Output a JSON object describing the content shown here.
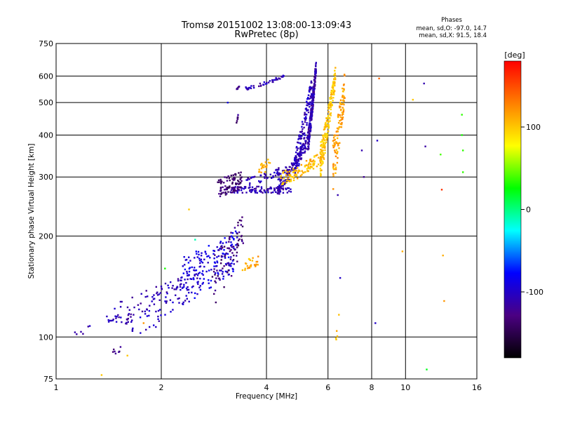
{
  "chart_data": {
    "type": "scatter",
    "title": "Tromsø 20151002 13:08:00-13:09:43",
    "subtitle": "RwPretec (8p)",
    "xlabel": "Frequency [MHz]",
    "ylabel": "Stationary phase Virtual Height [km]",
    "x_scale": "log",
    "y_scale": "log",
    "xlim": [
      1,
      16
    ],
    "ylim": [
      75,
      750
    ],
    "x_ticks": [
      "1",
      "2",
      "4",
      "6",
      "8",
      "10",
      "16"
    ],
    "y_ticks": [
      "75",
      "100",
      "200",
      "300",
      "400",
      "500",
      "600",
      "750"
    ],
    "grid": true,
    "stats_title": "Phases",
    "stats_line1": "mean, sd,O: -97.0, 14.7",
    "stats_line2": "mean, sd,X:  91.5, 18.4",
    "colorbar": {
      "label": "[deg]",
      "range": [
        -180,
        180
      ],
      "ticks": [
        "100",
        "0",
        "-100"
      ],
      "colors": [
        "#000000",
        "#4b0082",
        "#0000ff",
        "#00ffff",
        "#00ff00",
        "#ffff00",
        "#ff8000",
        "#ff0000"
      ]
    },
    "series": [
      {
        "segments": [
          {
            "f0": 1.35,
            "f1": 1.65,
            "h0": 113,
            "h1": 111,
            "n": 16,
            "jitter": 3,
            "phase": -110
          },
          {
            "f0": 1.65,
            "f1": 2.6,
            "h0": 111,
            "h1": 155,
            "n": 70,
            "jitter": 14,
            "phase": -105
          },
          {
            "f0": 1.45,
            "f1": 2.3,
            "h0": 120,
            "h1": 145,
            "n": 55,
            "jitter": 10,
            "phase": -108
          },
          {
            "f0": 2.3,
            "f1": 3.3,
            "h0": 150,
            "h1": 185,
            "n": 160,
            "jitter": 25,
            "phase": -90
          },
          {
            "f0": 2.8,
            "f1": 3.45,
            "h0": 150,
            "h1": 210,
            "n": 80,
            "jitter": 28,
            "phase": -130
          },
          {
            "f0": 3.05,
            "f1": 4.7,
            "h0": 275,
            "h1": 275,
            "n": 110,
            "jitter": 6,
            "phase": -110
          },
          {
            "f0": 2.9,
            "f1": 3.4,
            "h0": 280,
            "h1": 295,
            "n": 90,
            "jitter": 18,
            "phase": -135
          },
          {
            "f0": 4.3,
            "f1": 5.3,
            "h0": 280,
            "h1": 390,
            "n": 150,
            "jitter": 15,
            "phase": -110
          },
          {
            "f0": 3.5,
            "f1": 4.6,
            "h0": 290,
            "h1": 320,
            "n": 50,
            "jitter": 8,
            "phase": -108
          },
          {
            "f0": 4.8,
            "f1": 5.4,
            "h0": 320,
            "h1": 560,
            "n": 120,
            "jitter": 40,
            "phase": -105
          },
          {
            "f0": 5.25,
            "f1": 5.55,
            "h0": 380,
            "h1": 640,
            "n": 220,
            "jitter": 30,
            "phase": -112
          },
          {
            "f0": 3.4,
            "f1": 4.5,
            "h0": 548,
            "h1": 600,
            "n": 45,
            "jitter": 6,
            "phase": -108
          },
          {
            "f0": 3.28,
            "f1": 3.32,
            "h0": 440,
            "h1": 460,
            "n": 8,
            "jitter": 8,
            "phase": -130
          },
          {
            "f0": 3.28,
            "f1": 3.35,
            "h0": 540,
            "h1": 570,
            "n": 8,
            "jitter": 8,
            "phase": -125
          },
          {
            "f0": 1.45,
            "f1": 1.55,
            "h0": 90,
            "h1": 94,
            "n": 7,
            "jitter": 2,
            "phase": -130
          },
          {
            "f0": 1.03,
            "f1": 1.25,
            "h0": 100,
            "h1": 106,
            "n": 6,
            "jitter": 3,
            "phase": -105
          },
          {
            "f0": 3.8,
            "f1": 4.1,
            "h0": 315,
            "h1": 330,
            "n": 20,
            "jitter": 12,
            "phase": 110
          },
          {
            "f0": 3.4,
            "f1": 3.8,
            "h0": 163,
            "h1": 170,
            "n": 25,
            "jitter": 6,
            "phase": 110
          },
          {
            "f0": 4.4,
            "f1": 5.8,
            "h0": 298,
            "h1": 345,
            "n": 110,
            "jitter": 14,
            "phase": 105
          },
          {
            "f0": 5.7,
            "f1": 6.3,
            "h0": 340,
            "h1": 600,
            "n": 180,
            "jitter": 40,
            "phase": 100
          },
          {
            "f0": 6.2,
            "f1": 6.7,
            "h0": 330,
            "h1": 560,
            "n": 110,
            "jitter": 60,
            "phase": 115
          },
          {
            "f0": 6.3,
            "f1": 6.5,
            "h0": 100,
            "h1": 120,
            "n": 5,
            "jitter": 6,
            "phase": 100
          }
        ]
      }
    ],
    "scattered": [
      {
        "x": 1.35,
        "y": 77,
        "p": 100
      },
      {
        "x": 1.6,
        "y": 88,
        "p": 100
      },
      {
        "x": 1.78,
        "y": 110,
        "p": 120
      },
      {
        "x": 2.05,
        "y": 160,
        "p": 30
      },
      {
        "x": 2.4,
        "y": 240,
        "p": 100
      },
      {
        "x": 2.5,
        "y": 195,
        "p": -10
      },
      {
        "x": 3.1,
        "y": 500,
        "p": -90
      },
      {
        "x": 7.5,
        "y": 360,
        "p": -110
      },
      {
        "x": 7.6,
        "y": 300,
        "p": -120
      },
      {
        "x": 6.5,
        "y": 150,
        "p": -100
      },
      {
        "x": 6.4,
        "y": 265,
        "p": -110
      },
      {
        "x": 8.3,
        "y": 385,
        "p": -100
      },
      {
        "x": 8.4,
        "y": 590,
        "p": 140
      },
      {
        "x": 8.2,
        "y": 110,
        "p": -100
      },
      {
        "x": 9.8,
        "y": 180,
        "p": 110
      },
      {
        "x": 10.5,
        "y": 510,
        "p": 100
      },
      {
        "x": 11.3,
        "y": 570,
        "p": -110
      },
      {
        "x": 11.4,
        "y": 370,
        "p": -115
      },
      {
        "x": 11.5,
        "y": 80,
        "p": 20
      },
      {
        "x": 12.6,
        "y": 350,
        "p": 40
      },
      {
        "x": 12.7,
        "y": 275,
        "p": 160
      },
      {
        "x": 12.8,
        "y": 175,
        "p": 110
      },
      {
        "x": 12.9,
        "y": 128,
        "p": 120
      },
      {
        "x": 14.5,
        "y": 460,
        "p": 35
      },
      {
        "x": 14.5,
        "y": 400,
        "p": 30
      },
      {
        "x": 14.6,
        "y": 360,
        "p": 35
      },
      {
        "x": 14.6,
        "y": 310,
        "p": 35
      }
    ]
  }
}
